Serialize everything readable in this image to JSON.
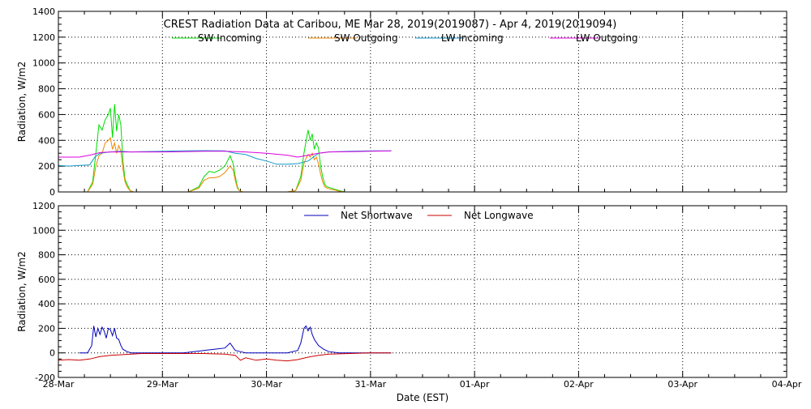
{
  "chart_data": [
    {
      "type": "line",
      "title": "CREST Radiation Data at Caribou, ME   Mar 28, 2019(2019087) - Apr  4, 2019(2019094)",
      "xlabel": "",
      "ylabel": "Radiation, W/m2",
      "x_unit": "days since 28-Mar",
      "xlim": [
        0,
        7
      ],
      "ylim": [
        0,
        1400
      ],
      "yticks": [
        0,
        200,
        400,
        600,
        800,
        1000,
        1200,
        1400
      ],
      "xticks": [
        0,
        1,
        2,
        3,
        4,
        5,
        6,
        7
      ],
      "xtick_labels": [
        "28-Mar",
        "29-Mar",
        "30-Mar",
        "31-Mar",
        "01-Apr",
        "02-Apr",
        "03-Apr",
        "04-Apr"
      ],
      "grid": true,
      "legend_position": "top",
      "series": [
        {
          "name": "SW Incoming",
          "color": "#00dd00",
          "x": [
            0.2,
            0.28,
            0.33,
            0.36,
            0.39,
            0.42,
            0.45,
            0.48,
            0.5,
            0.52,
            0.54,
            0.56,
            0.58,
            0.6,
            0.62,
            0.64,
            0.66,
            0.69,
            0.72,
            0.75,
            0.78,
            1.0,
            1.2,
            1.25,
            1.3,
            1.35,
            1.4,
            1.45,
            1.5,
            1.55,
            1.6,
            1.65,
            1.68,
            1.7,
            1.72,
            1.74,
            1.77,
            1.8,
            2.0,
            2.2,
            2.28,
            2.33,
            2.36,
            2.38,
            2.4,
            2.42,
            2.44,
            2.46,
            2.48,
            2.5,
            2.52,
            2.54,
            2.56,
            2.58,
            2.62,
            2.66,
            2.7,
            2.75,
            2.8
          ],
          "y": [
            0,
            0,
            80,
            300,
            520,
            480,
            560,
            600,
            650,
            420,
            680,
            470,
            600,
            520,
            250,
            100,
            60,
            10,
            0,
            0,
            0,
            0,
            0,
            0,
            20,
            40,
            120,
            160,
            150,
            170,
            200,
            280,
            220,
            120,
            40,
            10,
            0,
            0,
            0,
            0,
            10,
            120,
            300,
            390,
            480,
            400,
            450,
            330,
            380,
            340,
            200,
            120,
            60,
            40,
            30,
            20,
            10,
            0,
            0
          ]
        },
        {
          "name": "SW Outgoing",
          "color": "#ee8800",
          "x": [
            0.2,
            0.28,
            0.33,
            0.36,
            0.39,
            0.42,
            0.45,
            0.48,
            0.5,
            0.52,
            0.54,
            0.56,
            0.58,
            0.6,
            0.62,
            0.64,
            0.66,
            0.69,
            0.72,
            0.75,
            0.78,
            1.0,
            1.2,
            1.25,
            1.3,
            1.35,
            1.4,
            1.45,
            1.5,
            1.55,
            1.6,
            1.65,
            1.68,
            1.7,
            1.72,
            1.74,
            1.77,
            1.8,
            2.0,
            2.2,
            2.28,
            2.33,
            2.36,
            2.38,
            2.4,
            2.42,
            2.44,
            2.46,
            2.48,
            2.5,
            2.52,
            2.54,
            2.56,
            2.58,
            2.62,
            2.66,
            2.7,
            2.75,
            2.8
          ],
          "y": [
            0,
            0,
            60,
            200,
            280,
            300,
            380,
            400,
            420,
            330,
            380,
            300,
            360,
            320,
            180,
            80,
            40,
            10,
            0,
            0,
            0,
            0,
            0,
            0,
            15,
            30,
            90,
            110,
            110,
            120,
            150,
            200,
            170,
            90,
            30,
            10,
            0,
            0,
            0,
            0,
            10,
            90,
            220,
            260,
            290,
            270,
            300,
            250,
            270,
            220,
            140,
            80,
            40,
            30,
            20,
            15,
            5,
            0,
            0
          ]
        },
        {
          "name": "LW Incoming",
          "color": "#1199cc",
          "x": [
            0.0,
            0.1,
            0.2,
            0.3,
            0.35,
            0.4,
            0.5,
            0.6,
            0.7,
            0.8,
            1.0,
            1.2,
            1.4,
            1.6,
            1.7,
            1.8,
            1.9,
            2.0,
            2.1,
            2.2,
            2.3,
            2.4,
            2.5,
            2.6,
            2.8,
            3.0,
            3.2
          ],
          "y": [
            205,
            200,
            205,
            210,
            270,
            300,
            310,
            315,
            310,
            312,
            315,
            318,
            320,
            318,
            300,
            290,
            260,
            240,
            215,
            215,
            220,
            240,
            300,
            310,
            315,
            318,
            318
          ]
        },
        {
          "name": "LW Outgoing",
          "color": "#dd00dd",
          "x": [
            0.0,
            0.2,
            0.3,
            0.4,
            0.5,
            0.6,
            0.8,
            1.0,
            1.2,
            1.4,
            1.6,
            1.8,
            2.0,
            2.2,
            2.3,
            2.4,
            2.5,
            2.6,
            2.8,
            3.0,
            3.2
          ],
          "y": [
            270,
            270,
            285,
            305,
            310,
            310,
            310,
            310,
            312,
            315,
            315,
            310,
            300,
            285,
            270,
            285,
            300,
            310,
            312,
            315,
            318
          ]
        }
      ]
    },
    {
      "type": "line",
      "title": "",
      "xlabel": "Date (EST)",
      "ylabel": "Radiation, W/m2",
      "x_unit": "days since 28-Mar",
      "xlim": [
        0,
        7
      ],
      "ylim": [
        -200,
        1200
      ],
      "yticks": [
        -200,
        0,
        200,
        400,
        600,
        800,
        1000,
        1200
      ],
      "xticks": [
        0,
        1,
        2,
        3,
        4,
        5,
        6,
        7
      ],
      "xtick_labels": [
        "28-Mar",
        "29-Mar",
        "30-Mar",
        "31-Mar",
        "01-Apr",
        "02-Apr",
        "03-Apr",
        "04-Apr"
      ],
      "grid": true,
      "legend_position": "top",
      "series": [
        {
          "name": "Net Shortwave",
          "color": "#0000bb",
          "x": [
            0.2,
            0.28,
            0.32,
            0.34,
            0.36,
            0.38,
            0.4,
            0.42,
            0.44,
            0.46,
            0.48,
            0.5,
            0.52,
            0.54,
            0.56,
            0.58,
            0.6,
            0.62,
            0.66,
            0.7,
            0.8,
            1.0,
            1.2,
            1.3,
            1.4,
            1.5,
            1.6,
            1.65,
            1.7,
            1.75,
            1.8,
            2.0,
            2.2,
            2.3,
            2.33,
            2.36,
            2.38,
            2.4,
            2.42,
            2.44,
            2.46,
            2.5,
            2.55,
            2.6,
            2.7,
            2.8,
            3.0,
            3.2
          ],
          "y": [
            0,
            0,
            60,
            220,
            130,
            200,
            150,
            210,
            180,
            120,
            200,
            190,
            140,
            200,
            120,
            110,
            60,
            30,
            10,
            0,
            0,
            0,
            0,
            10,
            20,
            30,
            40,
            80,
            20,
            10,
            0,
            0,
            0,
            20,
            80,
            200,
            220,
            180,
            210,
            150,
            110,
            60,
            30,
            10,
            0,
            0,
            0,
            0
          ]
        },
        {
          "name": "Net Longwave",
          "color": "#cc0000",
          "x": [
            0.0,
            0.1,
            0.2,
            0.3,
            0.4,
            0.5,
            0.6,
            0.7,
            0.8,
            1.0,
            1.2,
            1.4,
            1.6,
            1.7,
            1.75,
            1.8,
            1.9,
            2.0,
            2.1,
            2.2,
            2.3,
            2.4,
            2.5,
            2.6,
            2.8,
            3.0,
            3.2
          ],
          "y": [
            -60,
            -55,
            -60,
            -50,
            -30,
            -20,
            -15,
            -10,
            -5,
            -5,
            -5,
            -5,
            -10,
            -20,
            -60,
            -40,
            -60,
            -50,
            -60,
            -65,
            -55,
            -35,
            -20,
            -10,
            -5,
            0,
            0
          ]
        }
      ]
    }
  ]
}
